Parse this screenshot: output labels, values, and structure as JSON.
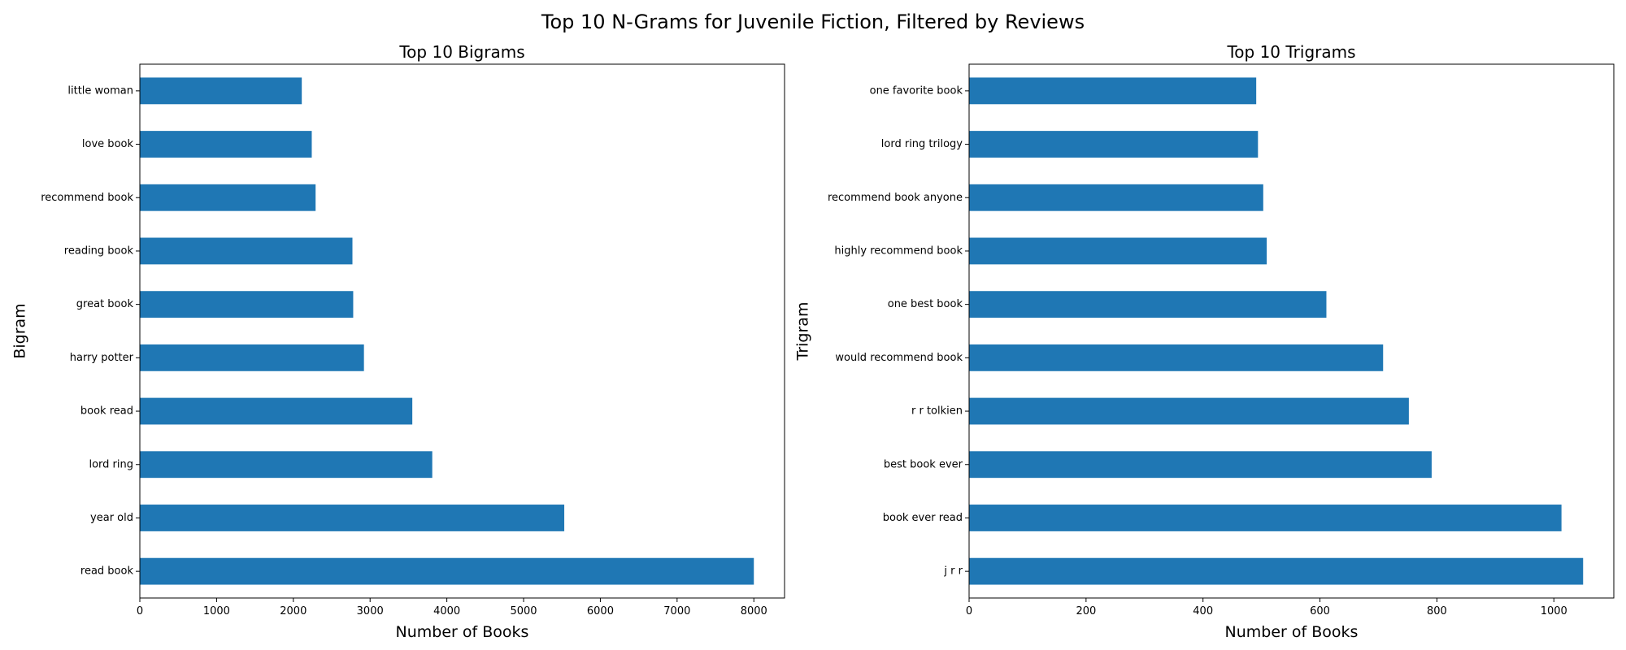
{
  "figure_title": "Top 10 N-Grams for Juvenile Fiction, Filtered by Reviews",
  "chart_data": [
    {
      "type": "bar",
      "orientation": "horizontal",
      "title": "Top 10 Bigrams",
      "xlabel": "Number of Books",
      "ylabel": "Bigram",
      "categories": [
        "read book",
        "year old",
        "lord ring",
        "book read",
        "harry potter",
        "great book",
        "reading book",
        "recommend book",
        "love book",
        "little woman"
      ],
      "values": [
        8000,
        5530,
        3810,
        3550,
        2920,
        2780,
        2770,
        2290,
        2240,
        2110
      ],
      "xlim": [
        0,
        8400
      ],
      "xticks": [
        0,
        1000,
        2000,
        3000,
        4000,
        5000,
        6000,
        7000,
        8000
      ],
      "bar_color": "#1f77b4",
      "grid": false,
      "legend": "none"
    },
    {
      "type": "bar",
      "orientation": "horizontal",
      "title": "Top 10 Trigrams",
      "xlabel": "Number of Books",
      "ylabel": "Trigram",
      "categories": [
        "j r r",
        "book ever read",
        "best book ever",
        "r r tolkien",
        "would recommend book",
        "one best book",
        "highly recommend book",
        "recommend book anyone",
        "lord ring trilogy",
        "one favorite book"
      ],
      "values": [
        1050,
        1013,
        791,
        752,
        708,
        611,
        509,
        503,
        494,
        491
      ],
      "xlim": [
        0,
        1102.5
      ],
      "xticks": [
        0,
        200,
        400,
        600,
        800,
        1000
      ],
      "bar_color": "#1f77b4",
      "grid": false,
      "legend": "none"
    }
  ]
}
